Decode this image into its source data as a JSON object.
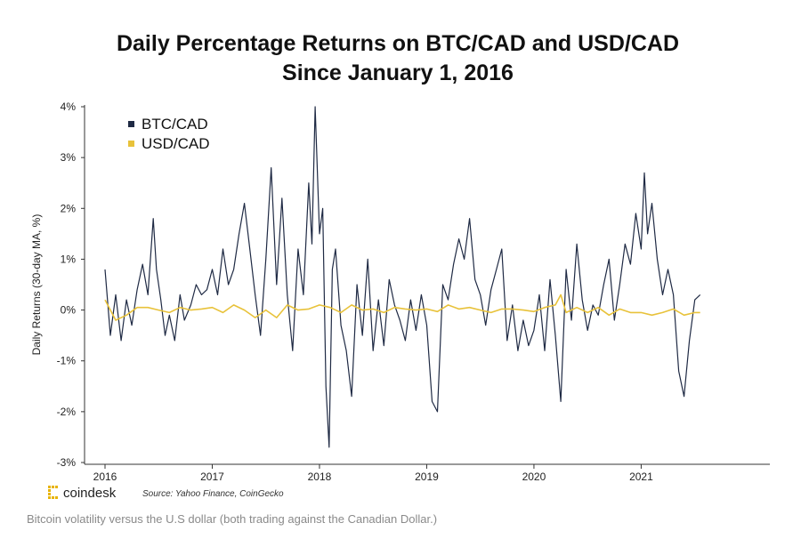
{
  "chart_data": {
    "type": "line",
    "title": "Daily Percentage Returns on BTC/CAD and USD/CAD",
    "subtitle": "Since January 1, 2016",
    "ylabel": "Daily Returns (30-day MA, %)",
    "xlabel": "",
    "ylim": [
      -3,
      4
    ],
    "xlim": [
      2016,
      2022.2
    ],
    "y_ticks": [
      "4%",
      "3%",
      "2%",
      "1%",
      "0%",
      "-1%",
      "-2%",
      "-3%"
    ],
    "y_tick_values": [
      4,
      3,
      2,
      1,
      0,
      -1,
      -2,
      -3
    ],
    "x_ticks": [
      "2016",
      "2017",
      "2018",
      "2019",
      "2020",
      "2021"
    ],
    "x_tick_values": [
      2016,
      2017,
      2018,
      2019,
      2020,
      2021
    ],
    "legend_position": "top-left",
    "grid": false,
    "series": [
      {
        "name": "BTC/CAD",
        "color": "#1f2a44",
        "x": [
          2016.0,
          2016.05,
          2016.1,
          2016.15,
          2016.2,
          2016.25,
          2016.3,
          2016.35,
          2016.4,
          2016.45,
          2016.48,
          2016.52,
          2016.56,
          2016.6,
          2016.65,
          2016.7,
          2016.74,
          2016.8,
          2016.85,
          2016.9,
          2016.95,
          2017.0,
          2017.05,
          2017.1,
          2017.15,
          2017.2,
          2017.25,
          2017.3,
          2017.35,
          2017.4,
          2017.45,
          2017.5,
          2017.55,
          2017.6,
          2017.65,
          2017.7,
          2017.75,
          2017.8,
          2017.85,
          2017.9,
          2017.93,
          2017.96,
          2018.0,
          2018.03,
          2018.06,
          2018.09,
          2018.12,
          2018.15,
          2018.2,
          2018.25,
          2018.3,
          2018.35,
          2018.4,
          2018.45,
          2018.5,
          2018.55,
          2018.6,
          2018.65,
          2018.7,
          2018.75,
          2018.8,
          2018.85,
          2018.9,
          2018.95,
          2019.0,
          2019.05,
          2019.1,
          2019.15,
          2019.2,
          2019.25,
          2019.3,
          2019.35,
          2019.4,
          2019.45,
          2019.5,
          2019.55,
          2019.6,
          2019.65,
          2019.7,
          2019.75,
          2019.8,
          2019.85,
          2019.9,
          2019.95,
          2020.0,
          2020.05,
          2020.1,
          2020.15,
          2020.2,
          2020.25,
          2020.3,
          2020.35,
          2020.4,
          2020.45,
          2020.5,
          2020.55,
          2020.6,
          2020.65,
          2020.7,
          2020.75,
          2020.8,
          2020.85,
          2020.9,
          2020.95,
          2021.0,
          2021.03,
          2021.06,
          2021.1,
          2021.15,
          2021.2,
          2021.25,
          2021.3,
          2021.35,
          2021.4,
          2021.45,
          2021.5,
          2021.55
        ],
        "values": [
          0.8,
          -0.5,
          0.3,
          -0.6,
          0.2,
          -0.3,
          0.4,
          0.9,
          0.3,
          1.8,
          0.8,
          0.2,
          -0.5,
          -0.1,
          -0.6,
          0.3,
          -0.2,
          0.1,
          0.5,
          0.3,
          0.4,
          0.8,
          0.3,
          1.2,
          0.5,
          0.8,
          1.5,
          2.1,
          1.2,
          0.3,
          -0.5,
          1.0,
          2.8,
          0.5,
          2.2,
          0.3,
          -0.8,
          1.2,
          0.3,
          2.5,
          1.3,
          4.0,
          1.5,
          2.0,
          -1.5,
          -2.7,
          0.8,
          1.2,
          -0.3,
          -0.8,
          -1.7,
          0.5,
          -0.5,
          1.0,
          -0.8,
          0.2,
          -0.7,
          0.6,
          0.1,
          -0.2,
          -0.6,
          0.2,
          -0.4,
          0.3,
          -0.3,
          -1.8,
          -2.0,
          0.5,
          0.2,
          0.9,
          1.4,
          1.0,
          1.8,
          0.6,
          0.3,
          -0.3,
          0.4,
          0.8,
          1.2,
          -0.6,
          0.1,
          -0.8,
          -0.2,
          -0.7,
          -0.4,
          0.3,
          -0.8,
          0.6,
          -0.5,
          -1.8,
          0.8,
          -0.2,
          1.3,
          0.2,
          -0.4,
          0.1,
          -0.1,
          0.5,
          1.0,
          -0.2,
          0.5,
          1.3,
          0.9,
          1.9,
          1.2,
          2.7,
          1.5,
          2.1,
          1.0,
          0.3,
          0.8,
          0.3,
          -1.2,
          -1.7,
          -0.6,
          0.2,
          0.3
        ]
      },
      {
        "name": "USD/CAD",
        "color": "#e8c23a",
        "x": [
          2016.0,
          2016.1,
          2016.2,
          2016.3,
          2016.4,
          2016.5,
          2016.6,
          2016.7,
          2016.8,
          2016.9,
          2017.0,
          2017.1,
          2017.2,
          2017.3,
          2017.4,
          2017.5,
          2017.6,
          2017.7,
          2017.8,
          2017.9,
          2018.0,
          2018.1,
          2018.2,
          2018.3,
          2018.4,
          2018.5,
          2018.6,
          2018.7,
          2018.8,
          2018.9,
          2019.0,
          2019.1,
          2019.2,
          2019.3,
          2019.4,
          2019.5,
          2019.6,
          2019.7,
          2019.8,
          2019.9,
          2020.0,
          2020.1,
          2020.2,
          2020.25,
          2020.3,
          2020.4,
          2020.5,
          2020.6,
          2020.7,
          2020.8,
          2020.9,
          2021.0,
          2021.1,
          2021.2,
          2021.3,
          2021.4,
          2021.5,
          2021.55
        ],
        "values": [
          0.2,
          -0.2,
          -0.1,
          0.05,
          0.05,
          0.0,
          -0.05,
          0.05,
          0.0,
          0.02,
          0.05,
          -0.05,
          0.1,
          0.0,
          -0.15,
          0.0,
          -0.15,
          0.1,
          0.0,
          0.02,
          0.1,
          0.05,
          -0.05,
          0.1,
          0.0,
          0.02,
          -0.05,
          0.05,
          0.02,
          0.0,
          0.02,
          -0.03,
          0.1,
          0.02,
          0.05,
          0.0,
          -0.05,
          0.02,
          0.02,
          0.0,
          -0.03,
          0.05,
          0.1,
          0.3,
          -0.05,
          0.05,
          -0.05,
          0.05,
          -0.1,
          0.02,
          -0.05,
          -0.05,
          -0.1,
          -0.05,
          0.02,
          -0.1,
          -0.05,
          -0.05
        ]
      }
    ]
  },
  "footer": {
    "brand": "coindesk",
    "source": "Source: Yahoo Finance, CoinGecko",
    "caption": "Bitcoin volatility versus the U.S dollar (both trading against the Canadian Dollar.)"
  }
}
